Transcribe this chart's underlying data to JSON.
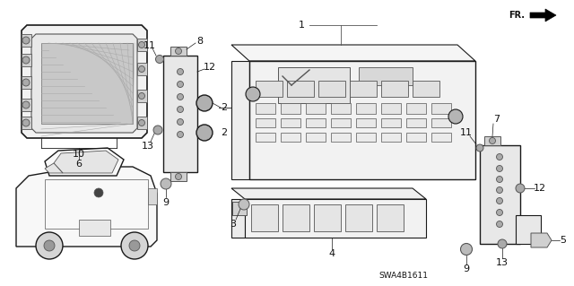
{
  "background_color": "#ffffff",
  "diagram_code": "SWA4B1611",
  "fr_label": "FR.",
  "line_color": "#222222",
  "text_color": "#111111",
  "font_size_label": 8,
  "gray1": "#1a1a1a",
  "gray2": "#555555",
  "gray3": "#888888",
  "gray_fill": "#e8e8e8",
  "gray_fill2": "#d0d0d0",
  "gray_fill3": "#f2f2f2"
}
